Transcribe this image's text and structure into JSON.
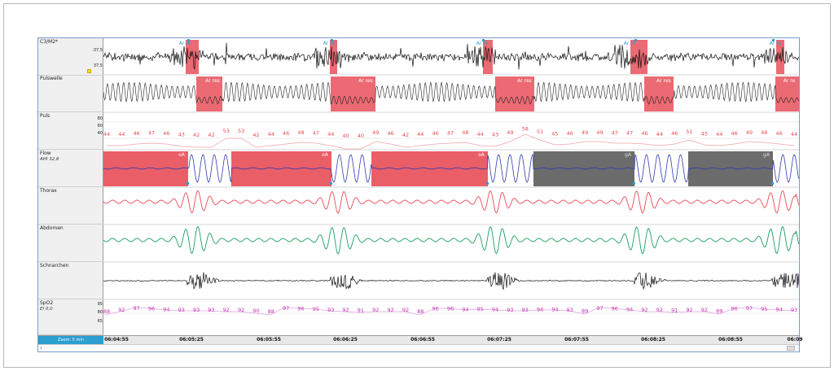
{
  "channels": [
    {
      "name": "C3/M2*",
      "sub": "",
      "scale": [
        "-37,5",
        "37,5"
      ],
      "marker": true
    },
    {
      "name": "Pulswelle",
      "sub": "",
      "scale": []
    },
    {
      "name": "Puls",
      "sub": "",
      "scale": [
        "80",
        "60",
        "40"
      ]
    },
    {
      "name": "Flow",
      "sub": "AHI 32,6",
      "scale": []
    },
    {
      "name": "Thorax",
      "sub": "",
      "scale": []
    },
    {
      "name": "Abdomen",
      "sub": "",
      "scale": []
    },
    {
      "name": "Schnarchen",
      "sub": "",
      "scale": []
    },
    {
      "name": "SpO2",
      "sub": "EI 0,0",
      "scale": [
        "95",
        "80",
        "65"
      ]
    }
  ],
  "eeg_events": [
    {
      "label": "Ar re"
    },
    {
      "label": "Ar re"
    },
    {
      "label": "Ar re"
    },
    {
      "label": "Ar re"
    },
    {
      "label": "Ar re"
    }
  ],
  "pulse_wave_events": [
    {
      "label": "Ar res"
    },
    {
      "label": "Ar res"
    },
    {
      "label": "Ar res"
    },
    {
      "label": "Ar res"
    },
    {
      "label": "Ar re"
    }
  ],
  "pulse_values": [
    "44",
    "44",
    "46",
    "47",
    "46",
    "43",
    "42",
    "42",
    "53",
    "53",
    "42",
    "44",
    "46",
    "48",
    "47",
    "44",
    "40",
    "40",
    "49",
    "46",
    "42",
    "44",
    "46",
    "47",
    "48",
    "44",
    "43",
    "49",
    "58",
    "51",
    "45",
    "46",
    "49",
    "49",
    "47",
    "47",
    "46",
    "44",
    "46",
    "51",
    "45",
    "44",
    "46",
    "49",
    "48",
    "46",
    "44"
  ],
  "flow_events": [
    {
      "label": "oA",
      "kind": "obstructive"
    },
    {
      "label": "oA",
      "kind": "obstructive"
    },
    {
      "label": "oA",
      "kind": "obstructive"
    },
    {
      "label": "gA",
      "kind": "mixed"
    },
    {
      "label": "gA",
      "kind": "mixed"
    }
  ],
  "spo2_values": [
    "88",
    "92",
    "97",
    "96",
    "94",
    "93",
    "93",
    "93",
    "92",
    "92",
    "90",
    "88",
    "97",
    "96",
    "95",
    "93",
    "92",
    "91",
    "92",
    "92",
    "92",
    "88",
    "96",
    "96",
    "94",
    "95",
    "94",
    "93",
    "93",
    "94",
    "94",
    "93",
    "89",
    "97",
    "96",
    "94",
    "92",
    "92",
    "91",
    "92",
    "92",
    "89",
    "96",
    "97",
    "95",
    "94",
    "93"
  ],
  "timebar": {
    "zoom_label": "Zoom: 5 min",
    "ticks": [
      "06:04:55",
      "06:05:25",
      "06:05:55",
      "06:06:25",
      "06:06:55",
      "06:07:25",
      "06:07:55",
      "06:08:25",
      "06:08:55",
      "06:09"
    ]
  },
  "colors": {
    "event_red": "#e8505b",
    "event_gray": "#606060",
    "flow": "#2d3ab0",
    "thorax": "#e84a55",
    "abdomen": "#1a9e5e",
    "pulse": "#e84a55",
    "spo2": "#c030b0",
    "eeg": "#111111"
  }
}
